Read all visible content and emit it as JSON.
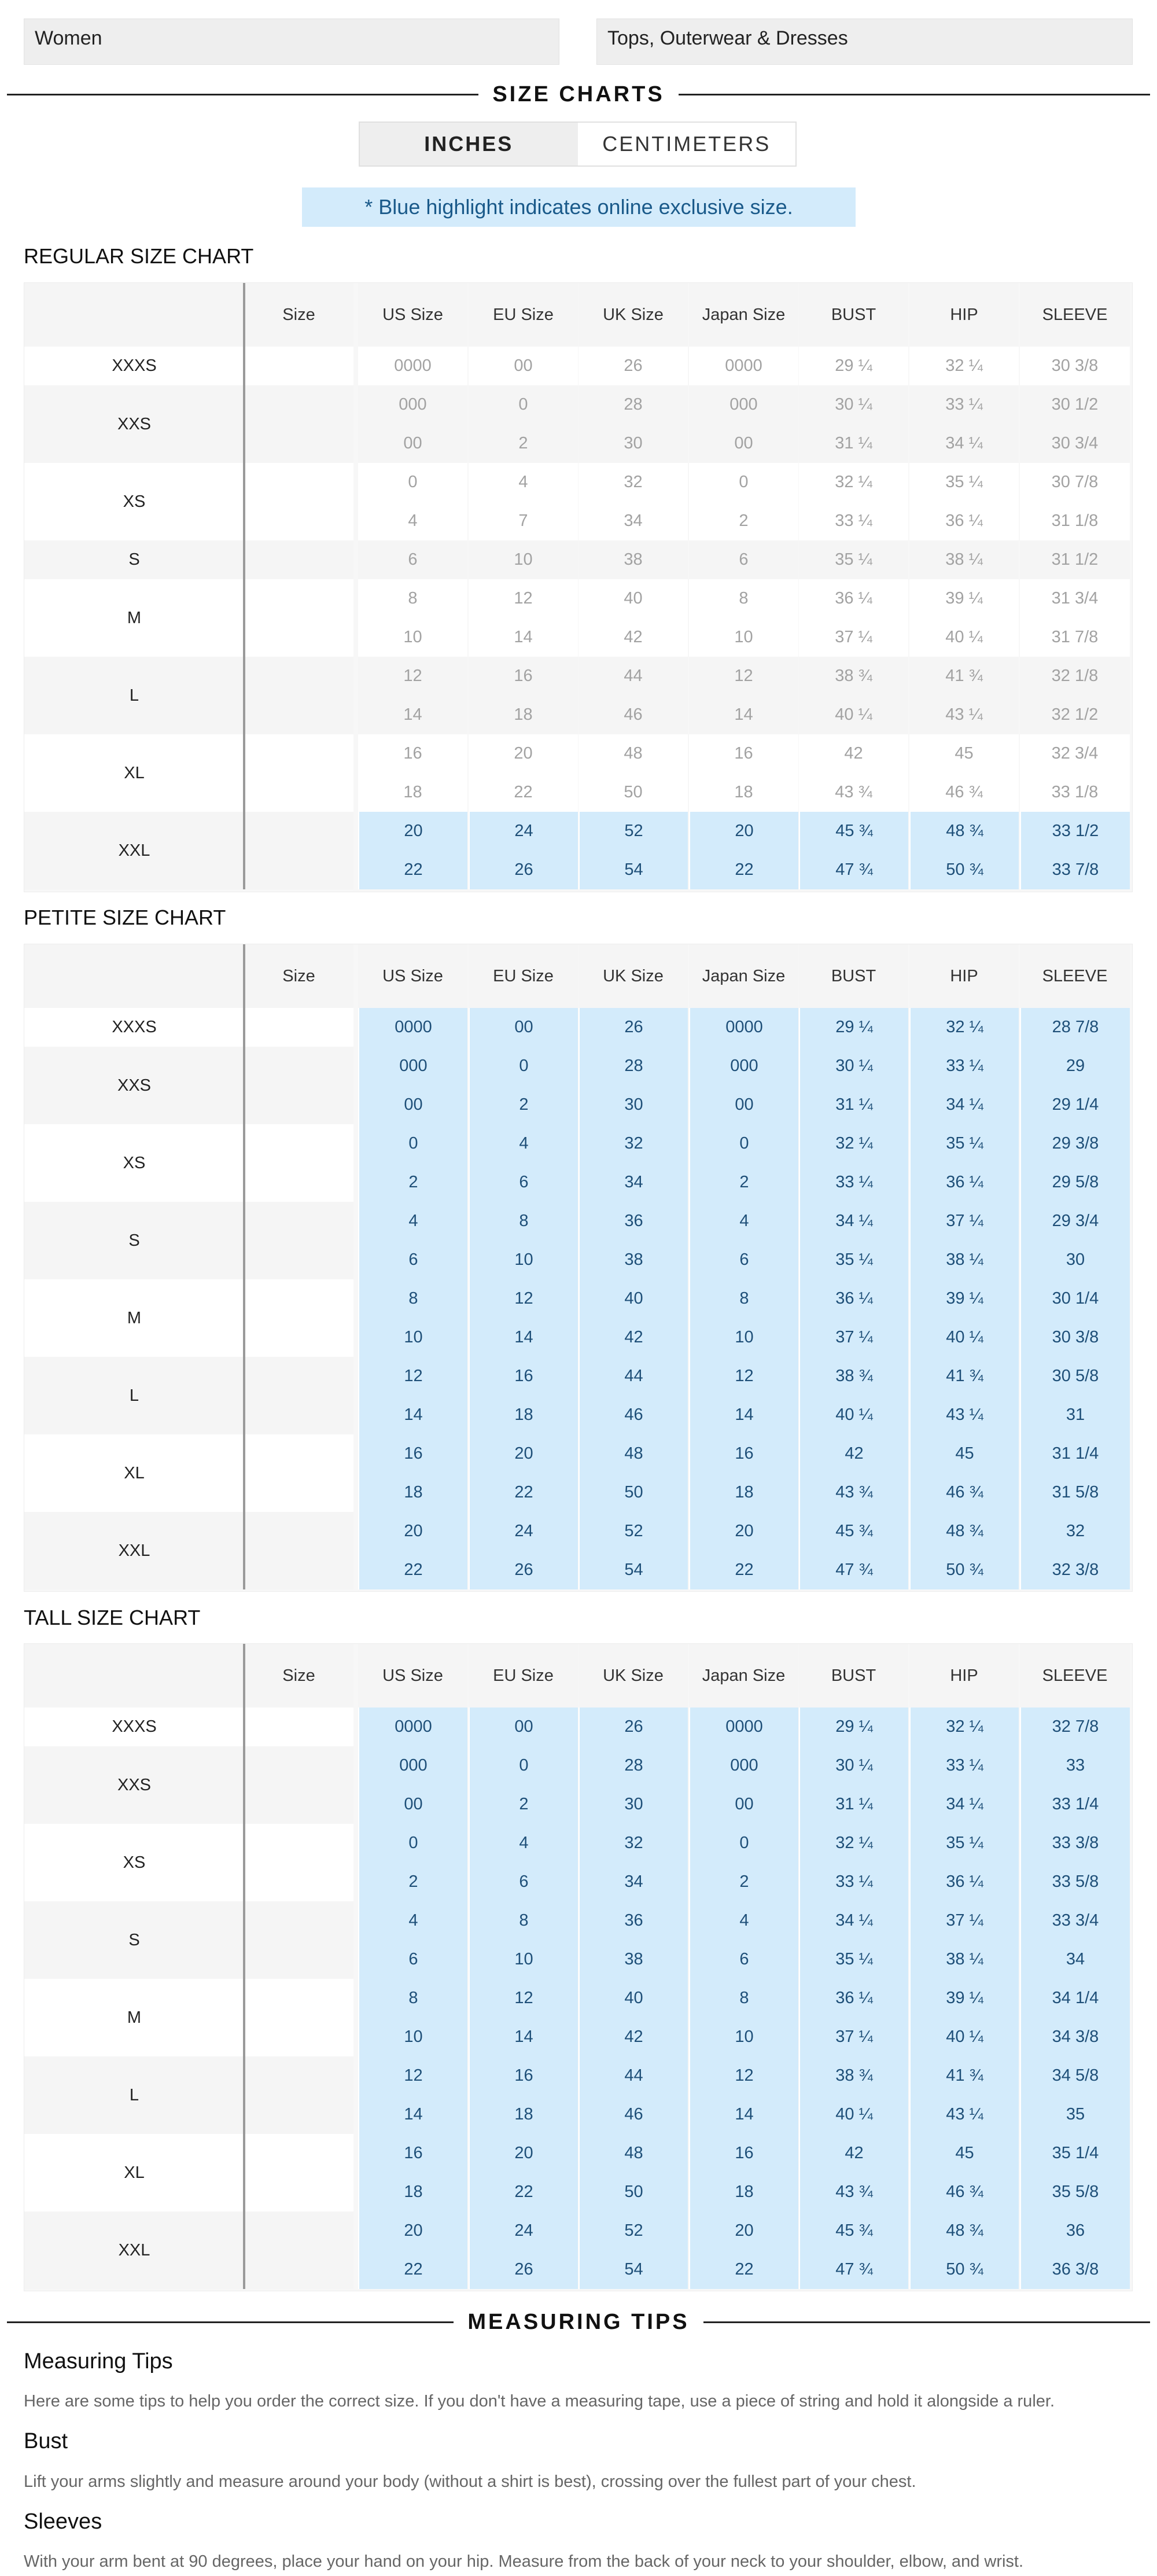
{
  "filters": {
    "gender": "Women",
    "category": "Tops, Outerwear & Dresses"
  },
  "headings": {
    "size_charts": "SIZE CHARTS",
    "measuring_tips": "MEASURING TIPS"
  },
  "units": {
    "inches": "INCHES",
    "centimeters": "CENTIMETERS",
    "selected": "INCHES"
  },
  "notice": "* Blue highlight indicates online exclusive size.",
  "colors": {
    "highlight_bg": "#d3ebfb",
    "highlight_text": "#1e4f78",
    "row_shade": "#f5f5f5",
    "row_white": "#ffffff",
    "toggle_active_bg": "#eeeeee"
  },
  "columns": [
    "Size",
    "US Size",
    "EU Size",
    "UK Size",
    "Japan Size",
    "BUST",
    "HIP",
    "SLEEVE"
  ],
  "charts": [
    {
      "title": "REGULAR SIZE CHART",
      "groups": [
        {
          "label": "XXXS",
          "rows": [
            {
              "us": "0000",
              "eu": "00",
              "uk": "26",
              "jp": "0000",
              "bust": "29 ¼",
              "hip": "32 ¼",
              "sleeve": "30 3/8",
              "highlight": false
            }
          ]
        },
        {
          "label": "XXS",
          "rows": [
            {
              "us": "000",
              "eu": "0",
              "uk": "28",
              "jp": "000",
              "bust": "30 ¼",
              "hip": "33 ¼",
              "sleeve": "30 1/2",
              "highlight": false
            },
            {
              "us": "00",
              "eu": "2",
              "uk": "30",
              "jp": "00",
              "bust": "31 ¼",
              "hip": "34 ¼",
              "sleeve": "30 3/4",
              "highlight": false
            }
          ]
        },
        {
          "label": "XS",
          "rows": [
            {
              "us": "0",
              "eu": "4",
              "uk": "32",
              "jp": "0",
              "bust": "32 ¼",
              "hip": "35 ¼",
              "sleeve": "30 7/8",
              "highlight": false
            },
            {
              "us": "4",
              "eu": "7",
              "uk": "34",
              "jp": "2",
              "bust": "33 ¼",
              "hip": "36 ¼",
              "sleeve": "31 1/8",
              "highlight": false
            }
          ]
        },
        {
          "label": "S",
          "rows": [
            {
              "us": "6",
              "eu": "10",
              "uk": "38",
              "jp": "6",
              "bust": "35 ¼",
              "hip": "38 ¼",
              "sleeve": "31 1/2",
              "highlight": false
            }
          ]
        },
        {
          "label": "M",
          "rows": [
            {
              "us": "8",
              "eu": "12",
              "uk": "40",
              "jp": "8",
              "bust": "36 ¼",
              "hip": "39 ¼",
              "sleeve": "31 3/4",
              "highlight": false
            },
            {
              "us": "10",
              "eu": "14",
              "uk": "42",
              "jp": "10",
              "bust": "37 ¼",
              "hip": "40 ¼",
              "sleeve": "31 7/8",
              "highlight": false
            }
          ]
        },
        {
          "label": "L",
          "rows": [
            {
              "us": "12",
              "eu": "16",
              "uk": "44",
              "jp": "12",
              "bust": "38 ¾",
              "hip": "41 ¾",
              "sleeve": "32 1/8",
              "highlight": false
            },
            {
              "us": "14",
              "eu": "18",
              "uk": "46",
              "jp": "14",
              "bust": "40 ¼",
              "hip": "43 ¼",
              "sleeve": "32 1/2",
              "highlight": false
            }
          ]
        },
        {
          "label": "XL",
          "rows": [
            {
              "us": "16",
              "eu": "20",
              "uk": "48",
              "jp": "16",
              "bust": "42",
              "hip": "45",
              "sleeve": "32 3/4",
              "highlight": false
            },
            {
              "us": "18",
              "eu": "22",
              "uk": "50",
              "jp": "18",
              "bust": "43 ¾",
              "hip": "46 ¾",
              "sleeve": "33 1/8",
              "highlight": false
            }
          ]
        },
        {
          "label": "XXL",
          "rows": [
            {
              "us": "20",
              "eu": "24",
              "uk": "52",
              "jp": "20",
              "bust": "45 ¾",
              "hip": "48 ¾",
              "sleeve": "33 1/2",
              "highlight": true
            },
            {
              "us": "22",
              "eu": "26",
              "uk": "54",
              "jp": "22",
              "bust": "47 ¾",
              "hip": "50 ¾",
              "sleeve": "33 7/8",
              "highlight": true
            }
          ]
        }
      ]
    },
    {
      "title": "PETITE SIZE CHART",
      "groups": [
        {
          "label": "XXXS",
          "rows": [
            {
              "us": "0000",
              "eu": "00",
              "uk": "26",
              "jp": "0000",
              "bust": "29 ¼",
              "hip": "32 ¼",
              "sleeve": "28 7/8",
              "highlight": true
            }
          ]
        },
        {
          "label": "XXS",
          "rows": [
            {
              "us": "000",
              "eu": "0",
              "uk": "28",
              "jp": "000",
              "bust": "30 ¼",
              "hip": "33 ¼",
              "sleeve": "29",
              "highlight": true
            },
            {
              "us": "00",
              "eu": "2",
              "uk": "30",
              "jp": "00",
              "bust": "31 ¼",
              "hip": "34 ¼",
              "sleeve": "29 1/4",
              "highlight": true
            }
          ]
        },
        {
          "label": "XS",
          "rows": [
            {
              "us": "0",
              "eu": "4",
              "uk": "32",
              "jp": "0",
              "bust": "32 ¼",
              "hip": "35 ¼",
              "sleeve": "29 3/8",
              "highlight": true
            },
            {
              "us": "2",
              "eu": "6",
              "uk": "34",
              "jp": "2",
              "bust": "33 ¼",
              "hip": "36 ¼",
              "sleeve": "29 5/8",
              "highlight": true
            }
          ]
        },
        {
          "label": "S",
          "rows": [
            {
              "us": "4",
              "eu": "8",
              "uk": "36",
              "jp": "4",
              "bust": "34 ¼",
              "hip": "37 ¼",
              "sleeve": "29 3/4",
              "highlight": true
            },
            {
              "us": "6",
              "eu": "10",
              "uk": "38",
              "jp": "6",
              "bust": "35 ¼",
              "hip": "38 ¼",
              "sleeve": "30",
              "highlight": true
            }
          ]
        },
        {
          "label": "M",
          "rows": [
            {
              "us": "8",
              "eu": "12",
              "uk": "40",
              "jp": "8",
              "bust": "36 ¼",
              "hip": "39 ¼",
              "sleeve": "30 1/4",
              "highlight": true
            },
            {
              "us": "10",
              "eu": "14",
              "uk": "42",
              "jp": "10",
              "bust": "37 ¼",
              "hip": "40 ¼",
              "sleeve": "30 3/8",
              "highlight": true
            }
          ]
        },
        {
          "label": "L",
          "rows": [
            {
              "us": "12",
              "eu": "16",
              "uk": "44",
              "jp": "12",
              "bust": "38 ¾",
              "hip": "41 ¾",
              "sleeve": "30 5/8",
              "highlight": true
            },
            {
              "us": "14",
              "eu": "18",
              "uk": "46",
              "jp": "14",
              "bust": "40 ¼",
              "hip": "43 ¼",
              "sleeve": "31",
              "highlight": true
            }
          ]
        },
        {
          "label": "XL",
          "rows": [
            {
              "us": "16",
              "eu": "20",
              "uk": "48",
              "jp": "16",
              "bust": "42",
              "hip": "45",
              "sleeve": "31 1/4",
              "highlight": true
            },
            {
              "us": "18",
              "eu": "22",
              "uk": "50",
              "jp": "18",
              "bust": "43 ¾",
              "hip": "46 ¾",
              "sleeve": "31 5/8",
              "highlight": true
            }
          ]
        },
        {
          "label": "XXL",
          "rows": [
            {
              "us": "20",
              "eu": "24",
              "uk": "52",
              "jp": "20",
              "bust": "45 ¾",
              "hip": "48 ¾",
              "sleeve": "32",
              "highlight": true
            },
            {
              "us": "22",
              "eu": "26",
              "uk": "54",
              "jp": "22",
              "bust": "47 ¾",
              "hip": "50 ¾",
              "sleeve": "32 3/8",
              "highlight": true
            }
          ]
        }
      ]
    },
    {
      "title": "TALL SIZE CHART",
      "groups": [
        {
          "label": "XXXS",
          "rows": [
            {
              "us": "0000",
              "eu": "00",
              "uk": "26",
              "jp": "0000",
              "bust": "29 ¼",
              "hip": "32 ¼",
              "sleeve": "32 7/8",
              "highlight": true
            }
          ]
        },
        {
          "label": "XXS",
          "rows": [
            {
              "us": "000",
              "eu": "0",
              "uk": "28",
              "jp": "000",
              "bust": "30 ¼",
              "hip": "33 ¼",
              "sleeve": "33",
              "highlight": true
            },
            {
              "us": "00",
              "eu": "2",
              "uk": "30",
              "jp": "00",
              "bust": "31 ¼",
              "hip": "34 ¼",
              "sleeve": "33 1/4",
              "highlight": true
            }
          ]
        },
        {
          "label": "XS",
          "rows": [
            {
              "us": "0",
              "eu": "4",
              "uk": "32",
              "jp": "0",
              "bust": "32 ¼",
              "hip": "35 ¼",
              "sleeve": "33 3/8",
              "highlight": true
            },
            {
              "us": "2",
              "eu": "6",
              "uk": "34",
              "jp": "2",
              "bust": "33 ¼",
              "hip": "36 ¼",
              "sleeve": "33 5/8",
              "highlight": true
            }
          ]
        },
        {
          "label": "S",
          "rows": [
            {
              "us": "4",
              "eu": "8",
              "uk": "36",
              "jp": "4",
              "bust": "34 ¼",
              "hip": "37 ¼",
              "sleeve": "33 3/4",
              "highlight": true
            },
            {
              "us": "6",
              "eu": "10",
              "uk": "38",
              "jp": "6",
              "bust": "35 ¼",
              "hip": "38 ¼",
              "sleeve": "34",
              "highlight": true
            }
          ]
        },
        {
          "label": "M",
          "rows": [
            {
              "us": "8",
              "eu": "12",
              "uk": "40",
              "jp": "8",
              "bust": "36 ¼",
              "hip": "39 ¼",
              "sleeve": "34 1/4",
              "highlight": true
            },
            {
              "us": "10",
              "eu": "14",
              "uk": "42",
              "jp": "10",
              "bust": "37 ¼",
              "hip": "40 ¼",
              "sleeve": "34 3/8",
              "highlight": true
            }
          ]
        },
        {
          "label": "L",
          "rows": [
            {
              "us": "12",
              "eu": "16",
              "uk": "44",
              "jp": "12",
              "bust": "38 ¾",
              "hip": "41 ¾",
              "sleeve": "34 5/8",
              "highlight": true
            },
            {
              "us": "14",
              "eu": "18",
              "uk": "46",
              "jp": "14",
              "bust": "40 ¼",
              "hip": "43 ¼",
              "sleeve": "35",
              "highlight": true
            }
          ]
        },
        {
          "label": "XL",
          "rows": [
            {
              "us": "16",
              "eu": "20",
              "uk": "48",
              "jp": "16",
              "bust": "42",
              "hip": "45",
              "sleeve": "35 1/4",
              "highlight": true
            },
            {
              "us": "18",
              "eu": "22",
              "uk": "50",
              "jp": "18",
              "bust": "43 ¾",
              "hip": "46 ¾",
              "sleeve": "35 5/8",
              "highlight": true
            }
          ]
        },
        {
          "label": "XXL",
          "rows": [
            {
              "us": "20",
              "eu": "24",
              "uk": "52",
              "jp": "20",
              "bust": "45 ¾",
              "hip": "48 ¾",
              "sleeve": "36",
              "highlight": true
            },
            {
              "us": "22",
              "eu": "26",
              "uk": "54",
              "jp": "22",
              "bust": "47 ¾",
              "hip": "50 ¾",
              "sleeve": "36 3/8",
              "highlight": true
            }
          ]
        }
      ]
    }
  ],
  "tips": [
    {
      "title": "Measuring Tips",
      "text": "Here are some tips to help you order the correct size. If you don't have a measuring tape, use a piece of string and hold it alongside a ruler."
    },
    {
      "title": "Bust",
      "text": "Lift your arms slightly and measure around your body (without a shirt is best), crossing over the fullest part of your chest."
    },
    {
      "title": "Sleeves",
      "text": "With your arm bent at 90 degrees, place your hand on your hip. Measure from the back of your neck to your shoulder, elbow, and wrist."
    }
  ]
}
